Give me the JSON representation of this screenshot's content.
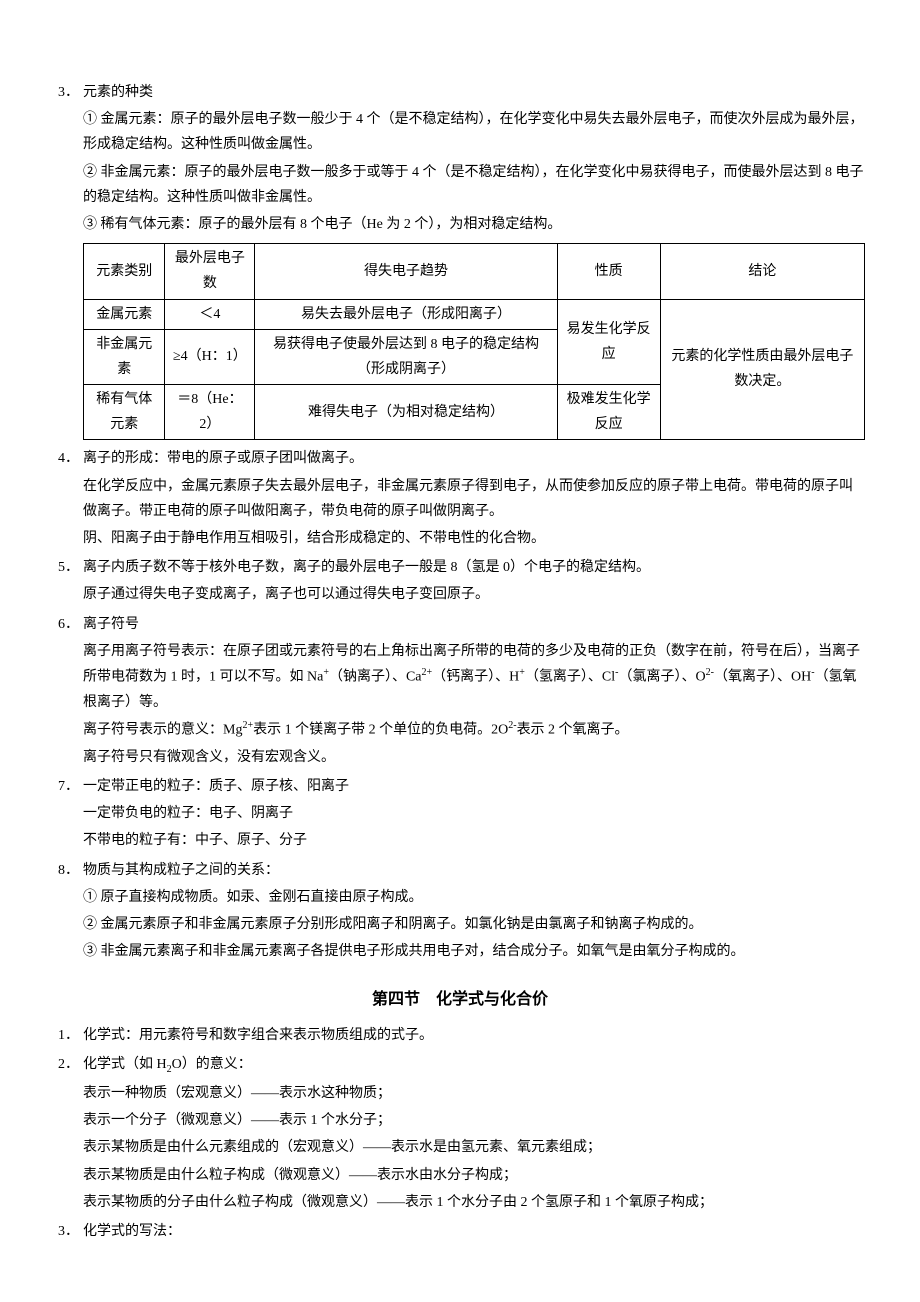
{
  "items": {
    "i3": {
      "num": "3．",
      "title": "元素的种类",
      "p1": "① 金属元素：原子的最外层电子数一般少于 4 个（是不稳定结构），在化学变化中易失去最外层电子，而使次外层成为最外层，形成稳定结构。这种性质叫做金属性。",
      "p2": "② 非金属元素：原子的最外层电子数一般多于或等于 4 个（是不稳定结构），在化学变化中易获得电子，而使最外层达到 8 电子的稳定结构。这种性质叫做非金属性。",
      "p3": "③ 稀有气体元素：原子的最外层有 8 个电子（He 为 2 个），为相对稳定结构。"
    },
    "table": {
      "h1": "元素类别",
      "h2": "最外层电子数",
      "h3": "得失电子趋势",
      "h4": "性质",
      "h5": "结论",
      "r1c1": "金属元素",
      "r1c2": "＜4",
      "r1c3": "易失去最外层电子（形成阳离子）",
      "r2c1": "非金属元素",
      "r2c2": "≥4（H：1）",
      "r2c3": "易获得电子使最外层达到 8 电子的稳定结构（形成阴离子）",
      "r12c4": "易发生化学反应",
      "r3c1": "稀有气体元素",
      "r3c2": "＝8（He：2）",
      "r3c3": "难得失电子（为相对稳定结构）",
      "r3c4": "极难发生化学反应",
      "r123c5": "元素的化学性质由最外层电子数决定。"
    },
    "i4": {
      "num": "4．",
      "p1": "离子的形成：带电的原子或原子团叫做离子。",
      "p2": "在化学反应中，金属元素原子失去最外层电子，非金属元素原子得到电子，从而使参加反应的原子带上电荷。带电荷的原子叫做离子。带正电荷的原子叫做阳离子，带负电荷的原子叫做阴离子。",
      "p3": "阴、阳离子由于静电作用互相吸引，结合形成稳定的、不带电性的化合物。"
    },
    "i5": {
      "num": "5．",
      "p1": "离子内质子数不等于核外电子数，离子的最外层电子一般是 8（氢是 0）个电子的稳定结构。",
      "p2": "原子通过得失电子变成离子，离子也可以通过得失电子变回原子。"
    },
    "i6": {
      "num": "6．",
      "title": "离子符号",
      "p1_a": "离子用离子符号表示：在原子团或元素符号的右上角标出离子所带的电荷的多少及电荷的正负（数字在前，符号在后），当离子所带电荷数为 1 时，1 可以不写。如 Na",
      "p1_b": "（钠离子）、Ca",
      "p1_c": "（钙离子）、H",
      "p1_d": "（氢离子）、Cl",
      "p1_e": "（氯离子）、O",
      "p1_f": "（氧离子）、OH",
      "p1_g": "（氢氧根离子）等。",
      "p2_a": "离子符号表示的意义：Mg",
      "p2_b": "表示 1 个镁离子带 2 个单位的负电荷。2O",
      "p2_c": "表示 2 个氧离子。",
      "p3": "离子符号只有微观含义，没有宏观含义。",
      "sup_plus": "+",
      "sup_2plus": "2+",
      "sup_minus": "-",
      "sup_2minus": "2-"
    },
    "i7": {
      "num": "7．",
      "p1": "一定带正电的粒子：质子、原子核、阳离子",
      "p2": "一定带负电的粒子：电子、阴离子",
      "p3": "不带电的粒子有：中子、原子、分子"
    },
    "i8": {
      "num": "8．",
      "title": "物质与其构成粒子之间的关系：",
      "p1": "① 原子直接构成物质。如汞、金刚石直接由原子构成。",
      "p2": "② 金属元素原子和非金属元素原子分别形成阳离子和阴离子。如氯化钠是由氯离子和钠离子构成的。",
      "p3": "③ 非金属元素离子和非金属元素离子各提供电子形成共用电子对，结合成分子。如氧气是由氧分子构成的。"
    }
  },
  "section2": {
    "title": "第四节　化学式与化合价",
    "i1": {
      "num": "1．",
      "p1": "化学式：用元素符号和数字组合来表示物质组成的式子。"
    },
    "i2": {
      "num": "2．",
      "title_a": "化学式（如 H",
      "title_b": "O）的意义：",
      "sub2": "2",
      "p1": "表示一种物质（宏观意义）——表示水这种物质；",
      "p2": "表示一个分子（微观意义）——表示 1 个水分子；",
      "p3": "表示某物质是由什么元素组成的（宏观意义）——表示水是由氢元素、氧元素组成；",
      "p4": "表示某物质是由什么粒子构成（微观意义）——表示水由水分子构成；",
      "p5": "表示某物质的分子由什么粒子构成（微观意义）——表示 1 个水分子由 2 个氢原子和 1 个氧原子构成；"
    },
    "i3": {
      "num": "3．",
      "p1": "化学式的写法："
    }
  }
}
